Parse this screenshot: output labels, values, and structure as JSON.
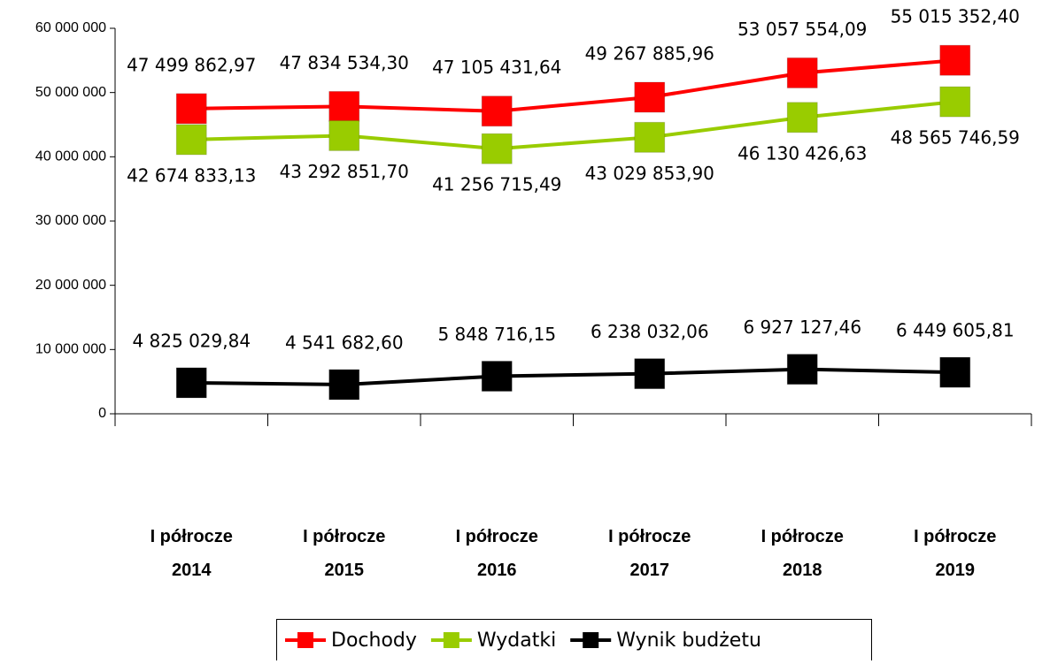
{
  "chart_data": {
    "type": "line",
    "categories": [
      "I półrocze 2014",
      "I półrocze 2015",
      "I półrocze 2016",
      "I półrocze 2017",
      "I półrocze 2018",
      "I półrocze 2019"
    ],
    "series": [
      {
        "name": "Dochody",
        "color": "#ff0000",
        "values": [
          47499862.97,
          47834534.3,
          47105431.64,
          49267885.96,
          53057554.09,
          55015352.4
        ],
        "value_labels": [
          "47 499 862,97",
          "47 834 534,30",
          "47 105 431,64",
          "49 267 885,96",
          "53 057 554,09",
          "55 015 352,40"
        ]
      },
      {
        "name": "Wydatki",
        "color": "#99cc00",
        "values": [
          42674833.13,
          43292851.7,
          41256715.49,
          43029853.9,
          46130426.63,
          48565746.59
        ],
        "value_labels": [
          "42 674 833,13",
          "43 292 851,70",
          "41 256 715,49",
          "43 029 853,90",
          "46 130 426,63",
          "48 565 746,59"
        ]
      },
      {
        "name": "Wynik budżetu",
        "color": "#000000",
        "values": [
          4825029.84,
          4541682.6,
          5848716.15,
          6238032.06,
          6927127.46,
          6449605.81
        ],
        "value_labels": [
          "4 825 029,84",
          "4 541 682,60",
          "5 848 716,15",
          "6 238 032,06",
          "6 927 127,46",
          "6 449 605,81"
        ]
      }
    ],
    "ylim": [
      0,
      60000000
    ],
    "yticks": [
      0,
      {
        "value": 10000000,
        "label": "10 000 000"
      },
      {
        "value": 20000000,
        "label": "20 000 000"
      },
      {
        "value": 30000000,
        "label": "30 000 000"
      },
      {
        "value": 40000000,
        "label": "40 000 000"
      },
      {
        "value": 50000000,
        "label": "50 000 000"
      },
      {
        "value": 60000000,
        "label": "60 000 000"
      }
    ],
    "legend": "bottom"
  }
}
